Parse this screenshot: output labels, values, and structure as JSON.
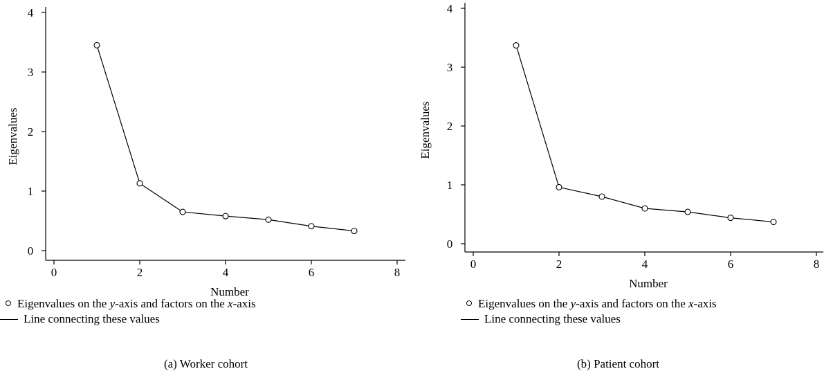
{
  "chart_data": [
    {
      "type": "line",
      "xlabel": "Number",
      "ylabel": "Eigenvalues",
      "xlim": [
        0,
        8
      ],
      "ylim": [
        0,
        4
      ],
      "x_ticks": [
        "0",
        "2",
        "4",
        "6",
        "8"
      ],
      "y_ticks": [
        "0",
        "1",
        "2",
        "3",
        "4"
      ],
      "x": [
        1,
        2,
        3,
        4,
        5,
        6,
        7
      ],
      "series": [
        {
          "values": [
            3.45,
            1.13,
            0.65,
            0.58,
            0.52,
            0.41,
            0.33
          ]
        }
      ],
      "legend": {
        "marker_label_pre": "Eigenvalues on the ",
        "marker_label_y": "y",
        "marker_label_mid": "-axis and factors on the ",
        "marker_label_x": "x",
        "marker_label_post": "-axis",
        "line_label": "Line connecting these values"
      },
      "caption": "(a)  Worker cohort"
    },
    {
      "type": "line",
      "xlabel": "Number",
      "ylabel": "Eigenvalues",
      "xlim": [
        0,
        8
      ],
      "ylim": [
        0,
        4
      ],
      "x_ticks": [
        "0",
        "2",
        "4",
        "6",
        "8"
      ],
      "y_ticks": [
        "0",
        "1",
        "2",
        "3",
        "4"
      ],
      "x": [
        1,
        2,
        3,
        4,
        5,
        6,
        7
      ],
      "series": [
        {
          "values": [
            3.37,
            0.96,
            0.8,
            0.6,
            0.54,
            0.44,
            0.37
          ]
        }
      ],
      "legend": {
        "marker_label_pre": "Eigenvalues on the ",
        "marker_label_y": "y",
        "marker_label_mid": "-axis and factors on the ",
        "marker_label_x": "x",
        "marker_label_post": "-axis",
        "line_label": "Line connecting these values"
      },
      "caption": "(b)  Patient cohort"
    }
  ]
}
